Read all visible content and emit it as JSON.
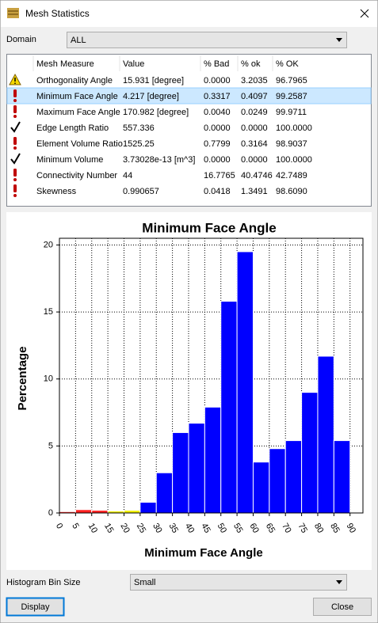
{
  "window": {
    "title": "Mesh Statistics"
  },
  "domain": {
    "label": "Domain",
    "value": "ALL"
  },
  "table": {
    "headers": [
      "Mesh Measure",
      "Value",
      "% Bad",
      "% ok",
      "% OK"
    ],
    "selected_row": 1,
    "rows": [
      {
        "status": "warning",
        "cells": [
          "Orthogonality Angle",
          "15.931 [degree]",
          "0.0000",
          "3.2035",
          "96.7965"
        ]
      },
      {
        "status": "error",
        "cells": [
          "Minimum Face Angle",
          "4.217 [degree]",
          "0.3317",
          "0.4097",
          "99.2587"
        ]
      },
      {
        "status": "error",
        "cells": [
          "Maximum Face Angle",
          "170.982 [degree]",
          "0.0040",
          "0.0249",
          "99.9711"
        ]
      },
      {
        "status": "ok",
        "cells": [
          "Edge Length Ratio",
          "557.336",
          "0.0000",
          "0.0000",
          "100.0000"
        ]
      },
      {
        "status": "error",
        "cells": [
          "Element Volume Ratio",
          "1525.25",
          "0.7799",
          "0.3164",
          "98.9037"
        ]
      },
      {
        "status": "ok",
        "cells": [
          "Minimum Volume",
          "3.73028e-13 [m^3]",
          "0.0000",
          "0.0000",
          "100.0000"
        ]
      },
      {
        "status": "error",
        "cells": [
          "Connectivity Number",
          "44",
          "16.7765",
          "40.4746",
          "42.7489"
        ]
      },
      {
        "status": "error",
        "cells": [
          "Skewness",
          "0.990657",
          "0.0418",
          "1.3491",
          "98.6090"
        ]
      }
    ]
  },
  "chart_data": {
    "type": "histogram",
    "title": "Minimum Face Angle",
    "x_label": "Minimum Face Angle",
    "y_label": "Percentage",
    "bins": [
      0,
      5,
      10,
      15,
      20,
      25,
      30,
      35,
      40,
      45,
      50,
      55,
      60,
      65,
      70,
      75,
      80,
      85,
      90
    ],
    "values": [
      0.1,
      0.25,
      0.2,
      0.15,
      0.2,
      0.8,
      3.0,
      6.0,
      6.7,
      7.9,
      15.8,
      19.5,
      3.8,
      4.8,
      5.4,
      9.0,
      11.7,
      5.4
    ],
    "colors": [
      "#ff2020",
      "#ff2020",
      "#ff2020",
      "#f0f000",
      "#f0f000",
      "#0000ff",
      "#0000ff",
      "#0000ff",
      "#0000ff",
      "#0000ff",
      "#0000ff",
      "#0000ff",
      "#0000ff",
      "#0000ff",
      "#0000ff",
      "#0000ff",
      "#0000ff",
      "#0000ff"
    ],
    "xlim": [
      0,
      94
    ],
    "ylim": [
      0,
      20.5
    ],
    "xticks": [
      0,
      5,
      10,
      15,
      20,
      25,
      30,
      35,
      40,
      45,
      50,
      55,
      60,
      65,
      70,
      75,
      80,
      85,
      90
    ],
    "yticks": [
      0,
      5,
      10,
      15,
      20
    ],
    "grid": true
  },
  "bin_size": {
    "label": "Histogram Bin Size",
    "value": "Small"
  },
  "buttons": [
    "Display",
    "Close"
  ]
}
